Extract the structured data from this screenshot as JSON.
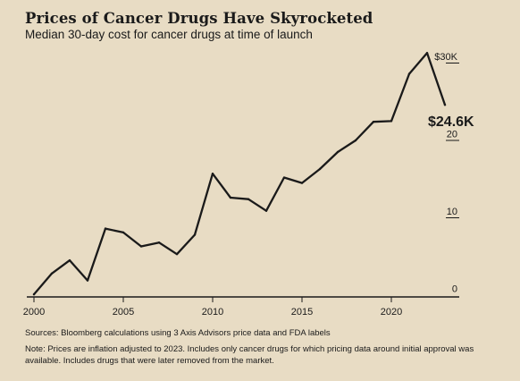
{
  "chart_data": {
    "type": "line",
    "title": "Prices of Cancer Drugs Have Skyrocketed",
    "subtitle": "Median 30-day cost for cancer drugs at time of launch",
    "x": [
      2000,
      2001,
      2002,
      2003,
      2004,
      2005,
      2006,
      2007,
      2008,
      2009,
      2010,
      2011,
      2012,
      2013,
      2014,
      2015,
      2016,
      2017,
      2018,
      2019,
      2020,
      2021,
      2022,
      2023
    ],
    "series": [
      {
        "values": [
          0.1,
          2.8,
          4.5,
          1.9,
          8.6,
          8.1,
          6.3,
          6.8,
          5.3,
          7.8,
          15.7,
          12.6,
          12.4,
          10.9,
          15.2,
          14.5,
          16.3,
          18.5,
          20.0,
          22.4,
          22.5,
          28.6,
          31.3,
          24.6
        ]
      }
    ],
    "x_ticks": [
      "2000",
      "2005",
      "2010",
      "2015",
      "2020"
    ],
    "y_ticks": [
      "0",
      "10",
      "20",
      "$30K"
    ],
    "ylim": [
      0,
      33
    ],
    "xlim": [
      2000,
      2023.5
    ],
    "end_label": "$24.6K",
    "grid": false,
    "line_color": "#1a1a1a",
    "background": "#e8dcc4"
  },
  "source": "Sources: Bloomberg calculations using 3 Axis Advisors price data and FDA labels",
  "note": "Note: Prices are inflation adjusted to 2023. Includes only cancer drugs for which pricing data around initial approval was available. Includes drugs that were later removed from the market."
}
